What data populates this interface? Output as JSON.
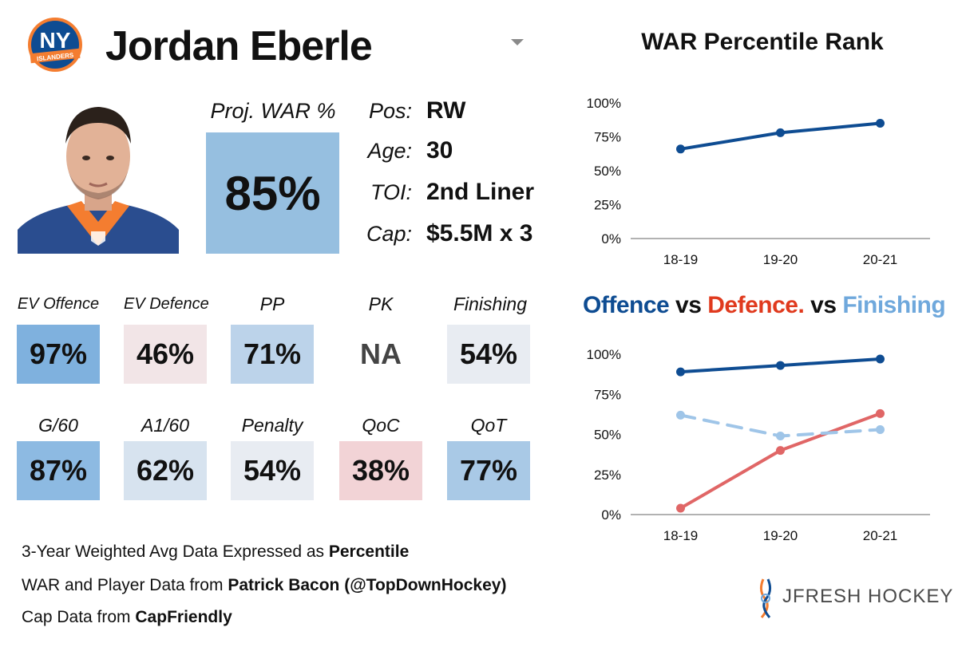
{
  "player": {
    "name": "Jordan Eberle",
    "team_logo_text": "NY",
    "team_logo_wordmark": "ISLANDERS"
  },
  "projection": {
    "label": "Proj. WAR %",
    "value": "85%"
  },
  "info": [
    {
      "label": "Pos:",
      "value": "RW"
    },
    {
      "label": "Age:",
      "value": "30"
    },
    {
      "label": "TOI:",
      "value": "2nd Liner"
    },
    {
      "label": "Cap:",
      "value": "$5.5M x 3"
    }
  ],
  "metrics_row1": [
    {
      "label": "EV Offence",
      "value": "97%",
      "color": "#7fb1de"
    },
    {
      "label": "EV Defence",
      "value": "46%",
      "color": "#f2e5e7"
    },
    {
      "label": "PP",
      "value": "71%",
      "color": "#bcd3ea"
    },
    {
      "label": "PK",
      "value": "NA",
      "color": "#ffffff"
    },
    {
      "label": "Finishing",
      "value": "54%",
      "color": "#e8ecf2"
    }
  ],
  "metrics_row2": [
    {
      "label": "G/60",
      "value": "87%",
      "color": "#8dbae2"
    },
    {
      "label": "A1/60",
      "value": "62%",
      "color": "#d7e3ef"
    },
    {
      "label": "Penalty",
      "value": "54%",
      "color": "#e8ecf2"
    },
    {
      "label": "QoC",
      "value": "38%",
      "color": "#f2d3d6"
    },
    {
      "label": "QoT",
      "value": "77%",
      "color": "#a9c9e6"
    }
  ],
  "notes": {
    "line1_prefix": "3-Year Weighted Avg Data Expressed as ",
    "line1_bold": "Percentile",
    "line2_prefix": "WAR and Player Data from ",
    "line2_bold": "Patrick Bacon (@TopDownHockey)",
    "line3_prefix": "Cap Data from ",
    "line3_bold": "CapFriendly"
  },
  "brand": {
    "text": "JFRESH HOCKEY"
  },
  "colors": {
    "offence": "#0e4c92",
    "defence": "#e06666",
    "finishing": "#9fc5e8",
    "war_line": "#0e4c92",
    "defence_title": "#e03a1e",
    "finishing_title": "#6fa8dc",
    "logo_blue": "#0e4c92",
    "logo_orange": "#f47d30"
  },
  "chart_data": [
    {
      "type": "line",
      "title": "WAR Percentile Rank",
      "categories": [
        "18-19",
        "19-20",
        "20-21"
      ],
      "yticks": [
        "0%",
        "25%",
        "50%",
        "75%",
        "100%"
      ],
      "ylim": [
        0,
        100
      ],
      "series": [
        {
          "values": [
            66,
            78,
            85
          ],
          "color": "#0e4c92",
          "style": "solid"
        }
      ]
    },
    {
      "type": "line",
      "title_parts": [
        {
          "text": "Offence",
          "color": "#0e4c92"
        },
        {
          "text": " vs ",
          "color": "#111111"
        },
        {
          "text": "Defence.",
          "color": "#e03a1e"
        },
        {
          "text": " vs ",
          "color": "#111111"
        },
        {
          "text": "Finishing",
          "color": "#6fa8dc"
        }
      ],
      "categories": [
        "18-19",
        "19-20",
        "20-21"
      ],
      "yticks": [
        "0%",
        "25%",
        "50%",
        "75%",
        "100%"
      ],
      "ylim": [
        0,
        100
      ],
      "series": [
        {
          "name": "Offence",
          "values": [
            89,
            93,
            97
          ],
          "color": "#0e4c92",
          "style": "solid"
        },
        {
          "name": "Defence",
          "values": [
            4,
            40,
            63
          ],
          "color": "#e06666",
          "style": "solid"
        },
        {
          "name": "Finishing",
          "values": [
            62,
            49,
            53
          ],
          "color": "#9fc5e8",
          "style": "dashed"
        }
      ]
    }
  ]
}
